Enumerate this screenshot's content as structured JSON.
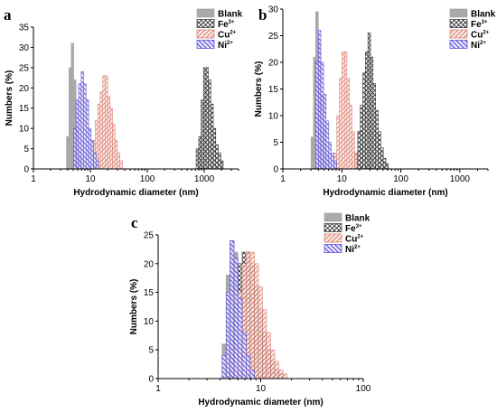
{
  "colors": {
    "Blank": "#a9a9a9",
    "Fe3+": "#2b2b2b",
    "Cu2+": "#d97a6a",
    "Ni2+": "#4c3fd6"
  },
  "chart_data": [
    {
      "panel": "a",
      "type": "bar",
      "xscale": "log",
      "xlim": [
        1,
        4000
      ],
      "ylim": [
        0,
        35
      ],
      "xticks": [
        1,
        10,
        100,
        1000
      ],
      "yticks": [
        0,
        5,
        10,
        15,
        20,
        25,
        30,
        35
      ],
      "xlabel": "Hydrodynamic diameter (nm)",
      "ylabel": "Numbers (%)",
      "legend_position": "top-right",
      "grid": false,
      "series": [
        {
          "name": "Blank",
          "bins": [
            [
              3.8,
              4.2,
              8
            ],
            [
              4.2,
              4.6,
              25
            ],
            [
              4.6,
              5.1,
              31
            ],
            [
              5.1,
              5.6,
              22
            ],
            [
              5.6,
              6.2,
              10
            ],
            [
              6.2,
              6.9,
              3
            ]
          ]
        },
        {
          "name": "Fe3+",
          "bins": [
            [
              720,
              800,
              5
            ],
            [
              800,
              880,
              8
            ],
            [
              880,
              970,
              17
            ],
            [
              970,
              1070,
              25
            ],
            [
              1070,
              1180,
              25
            ],
            [
              1180,
              1300,
              22
            ],
            [
              1300,
              1440,
              16
            ],
            [
              1440,
              1590,
              10
            ],
            [
              1590,
              1760,
              6
            ],
            [
              1760,
              1950,
              4
            ],
            [
              1950,
              2150,
              2
            ]
          ]
        },
        {
          "name": "Cu2+",
          "bins": [
            [
              11,
              12.2,
              7
            ],
            [
              12.2,
              13.5,
              12
            ],
            [
              13.5,
              14.9,
              16
            ],
            [
              14.9,
              16.5,
              19
            ],
            [
              16.5,
              18.2,
              23
            ],
            [
              18.2,
              20.1,
              23
            ],
            [
              20.1,
              22.2,
              18
            ],
            [
              22.2,
              24.5,
              15
            ],
            [
              24.5,
              27,
              11
            ],
            [
              27,
              29.8,
              7
            ],
            [
              29.8,
              33,
              4
            ],
            [
              33,
              36.5,
              2
            ]
          ]
        },
        {
          "name": "Ni2+",
          "bins": [
            [
              5.1,
              5.6,
              10
            ],
            [
              5.6,
              6.2,
              17
            ],
            [
              6.2,
              6.9,
              21
            ],
            [
              6.9,
              7.6,
              24
            ],
            [
              7.6,
              8.4,
              21
            ],
            [
              8.4,
              9.3,
              17
            ],
            [
              9.3,
              10.3,
              10
            ],
            [
              10.3,
              11.4,
              7
            ],
            [
              11.4,
              12.6,
              4
            ],
            [
              12.6,
              13.9,
              2
            ]
          ]
        }
      ]
    },
    {
      "panel": "b",
      "type": "bar",
      "xscale": "log",
      "xlim": [
        1,
        3000
      ],
      "ylim": [
        0,
        30
      ],
      "xticks": [
        1,
        10,
        100,
        1000
      ],
      "yticks": [
        0,
        5,
        10,
        15,
        20,
        25,
        30
      ],
      "xlabel": "Hydrodynamic diameter (nm)",
      "ylabel": "Numbers (%)",
      "legend_position": "top-right",
      "grid": false,
      "series": [
        {
          "name": "Blank",
          "bins": [
            [
              3,
              3.3,
              6
            ],
            [
              3.3,
              3.6,
              21
            ],
            [
              3.6,
              4,
              29.5
            ],
            [
              4,
              4.4,
              24
            ],
            [
              4.4,
              4.9,
              14
            ],
            [
              4.9,
              5.4,
              8
            ],
            [
              5.4,
              6,
              3
            ]
          ]
        },
        {
          "name": "Fe3+",
          "bins": [
            [
              16.8,
              18.6,
              3
            ],
            [
              18.6,
              20.6,
              7
            ],
            [
              20.6,
              22.7,
              12
            ],
            [
              22.7,
              25.1,
              18
            ],
            [
              25.1,
              27.7,
              22
            ],
            [
              27.7,
              30.6,
              25.5
            ],
            [
              30.6,
              33.8,
              21
            ],
            [
              33.8,
              37.4,
              16
            ],
            [
              37.4,
              41.3,
              11
            ],
            [
              41.3,
              45.6,
              7
            ],
            [
              45.6,
              50.4,
              4
            ],
            [
              50.4,
              55.7,
              2
            ],
            [
              55.7,
              61.6,
              1
            ]
          ]
        },
        {
          "name": "Cu2+",
          "bins": [
            [
              7.4,
              8.2,
              3
            ],
            [
              8.2,
              9.1,
              10
            ],
            [
              9.1,
              10,
              17
            ],
            [
              10,
              11.1,
              22
            ],
            [
              11.1,
              12.2,
              22
            ],
            [
              12.2,
              13.5,
              17
            ],
            [
              13.5,
              14.9,
              12
            ],
            [
              14.9,
              16.5,
              7
            ],
            [
              16.5,
              18.2,
              3
            ]
          ]
        },
        {
          "name": "Ni2+",
          "bins": [
            [
              3.6,
              4,
              20
            ],
            [
              4,
              4.4,
              26
            ],
            [
              4.4,
              4.9,
              20
            ],
            [
              4.9,
              5.4,
              14
            ],
            [
              5.4,
              6,
              9
            ],
            [
              6,
              6.6,
              5
            ],
            [
              6.6,
              7.3,
              3
            ],
            [
              7.3,
              8.1,
              1.5
            ]
          ]
        }
      ]
    },
    {
      "panel": "c",
      "type": "bar",
      "xscale": "log",
      "xlim": [
        1,
        100
      ],
      "ylim": [
        0,
        25
      ],
      "xticks": [
        1,
        10,
        100
      ],
      "yticks": [
        0,
        5,
        10,
        15,
        20,
        25
      ],
      "xlabel": "Hydrodynamic diameter (nm)",
      "ylabel": "Numbers (%)",
      "legend_position": "top-right",
      "grid": false,
      "series": [
        {
          "name": "Blank",
          "bins": [
            [
              4.2,
              4.6,
              6
            ],
            [
              4.6,
              5,
              18
            ],
            [
              5,
              5.5,
              24
            ],
            [
              5.5,
              6,
              22
            ],
            [
              6,
              6.6,
              16
            ],
            [
              6.6,
              7.2,
              9
            ],
            [
              7.2,
              7.9,
              4
            ],
            [
              7.9,
              8.7,
              2
            ]
          ]
        },
        {
          "name": "Fe3+",
          "bins": [
            [
              4.6,
              5,
              1
            ],
            [
              5,
              5.5,
              4
            ],
            [
              5.5,
              6,
              13
            ],
            [
              6,
              6.6,
              20
            ],
            [
              6.6,
              7.2,
              22
            ],
            [
              7.2,
              7.9,
              22
            ],
            [
              7.9,
              8.7,
              20
            ],
            [
              8.7,
              9.5,
              16
            ],
            [
              9.5,
              10.4,
              12
            ],
            [
              10.4,
              11.4,
              8
            ],
            [
              11.4,
              12.5,
              5
            ],
            [
              12.5,
              13.7,
              3
            ],
            [
              13.7,
              15,
              1.5
            ],
            [
              15,
              16.5,
              0.8
            ]
          ]
        },
        {
          "name": "Cu2+",
          "bins": [
            [
              5.5,
              6,
              5
            ],
            [
              6,
              6.6,
              15
            ],
            [
              6.6,
              7.2,
              20
            ],
            [
              7.2,
              7.9,
              22
            ],
            [
              7.9,
              8.7,
              22
            ],
            [
              8.7,
              9.5,
              20
            ],
            [
              9.5,
              10.4,
              16
            ],
            [
              10.4,
              11.4,
              12
            ],
            [
              11.4,
              12.5,
              8
            ],
            [
              12.5,
              13.7,
              5
            ],
            [
              13.7,
              15,
              3
            ],
            [
              15,
              16.5,
              1.5
            ],
            [
              16.5,
              18.1,
              0.8
            ]
          ]
        },
        {
          "name": "Ni2+",
          "bins": [
            [
              4.2,
              4.6,
              4
            ],
            [
              4.6,
              5,
              15
            ],
            [
              5,
              5.5,
              24
            ],
            [
              5.5,
              6,
              21
            ],
            [
              6,
              6.6,
              14
            ],
            [
              6.6,
              7.2,
              8
            ],
            [
              7.2,
              7.9,
              4
            ],
            [
              7.9,
              8.7,
              1.5
            ]
          ]
        }
      ]
    }
  ],
  "legend": [
    {
      "base": "Blank",
      "sup": ""
    },
    {
      "base": "Fe",
      "sup": "3+"
    },
    {
      "base": "Cu",
      "sup": "2+"
    },
    {
      "base": "Ni",
      "sup": "2+"
    }
  ]
}
